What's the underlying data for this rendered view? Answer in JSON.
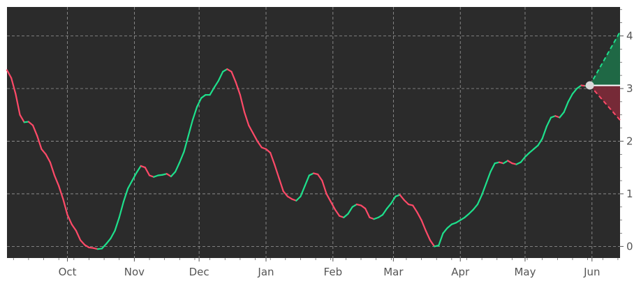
{
  "chart_data": {
    "type": "line",
    "title": "",
    "xlabel": "",
    "ylabel": "",
    "x_tick_labels": [
      "Oct",
      "Nov",
      "Dec",
      "Jan",
      "Feb",
      "Mar",
      "Apr",
      "May",
      "Jun"
    ],
    "y_tick_labels": [
      "0",
      "1",
      "2",
      "3",
      "4"
    ],
    "ylim": [
      -0.22,
      4.55
    ],
    "xlim": [
      "2020-09-03",
      "2021-06-14"
    ],
    "grid": true,
    "y_axis_side": "right",
    "colors": {
      "background": "#2b2b2b",
      "up": "#1ee08c",
      "down": "#ff4a68",
      "grid": "#9a9a9a",
      "marker": "#d9d9d9",
      "up_band": "#1f6b47",
      "down_band": "#7a2a38",
      "axis_text": "#555555"
    },
    "series": [
      {
        "points": [
          [
            "2020-09-03",
            3.35
          ],
          [
            "2020-09-05",
            3.2
          ],
          [
            "2020-09-07",
            2.9
          ],
          [
            "2020-09-09",
            2.5
          ],
          [
            "2020-09-11",
            2.36
          ],
          [
            "2020-09-13",
            2.37
          ],
          [
            "2020-09-15",
            2.3
          ],
          [
            "2020-09-17",
            2.1
          ],
          [
            "2020-09-19",
            1.85
          ],
          [
            "2020-09-21",
            1.75
          ],
          [
            "2020-09-23",
            1.6
          ],
          [
            "2020-09-25",
            1.35
          ],
          [
            "2020-09-27",
            1.15
          ],
          [
            "2020-09-29",
            0.9
          ],
          [
            "2020-10-01",
            0.6
          ],
          [
            "2020-10-03",
            0.42
          ],
          [
            "2020-10-05",
            0.3
          ],
          [
            "2020-10-07",
            0.12
          ],
          [
            "2020-10-09",
            0.03
          ],
          [
            "2020-10-11",
            -0.02
          ],
          [
            "2020-10-13",
            -0.03
          ],
          [
            "2020-10-15",
            -0.05
          ],
          [
            "2020-10-17",
            -0.04
          ],
          [
            "2020-10-19",
            0.05
          ],
          [
            "2020-10-21",
            0.15
          ],
          [
            "2020-10-23",
            0.3
          ],
          [
            "2020-10-25",
            0.55
          ],
          [
            "2020-10-27",
            0.85
          ],
          [
            "2020-10-29",
            1.1
          ],
          [
            "2020-10-31",
            1.25
          ],
          [
            "2020-11-02",
            1.4
          ],
          [
            "2020-11-04",
            1.53
          ],
          [
            "2020-11-06",
            1.5
          ],
          [
            "2020-11-08",
            1.35
          ],
          [
            "2020-11-10",
            1.32
          ],
          [
            "2020-11-12",
            1.35
          ],
          [
            "2020-11-14",
            1.36
          ],
          [
            "2020-11-16",
            1.38
          ],
          [
            "2020-11-18",
            1.33
          ],
          [
            "2020-11-20",
            1.42
          ],
          [
            "2020-11-22",
            1.6
          ],
          [
            "2020-11-24",
            1.8
          ],
          [
            "2020-11-26",
            2.1
          ],
          [
            "2020-11-28",
            2.4
          ],
          [
            "2020-11-30",
            2.65
          ],
          [
            "2020-12-02",
            2.82
          ],
          [
            "2020-12-04",
            2.88
          ],
          [
            "2020-12-06",
            2.88
          ],
          [
            "2020-12-08",
            3.02
          ],
          [
            "2020-12-10",
            3.15
          ],
          [
            "2020-12-12",
            3.32
          ],
          [
            "2020-12-14",
            3.37
          ],
          [
            "2020-12-16",
            3.32
          ],
          [
            "2020-12-18",
            3.12
          ],
          [
            "2020-12-20",
            2.88
          ],
          [
            "2020-12-22",
            2.55
          ],
          [
            "2020-12-24",
            2.3
          ],
          [
            "2020-12-26",
            2.15
          ],
          [
            "2020-12-28",
            2.0
          ],
          [
            "2020-12-30",
            1.88
          ],
          [
            "2021-01-01",
            1.85
          ],
          [
            "2021-01-03",
            1.78
          ],
          [
            "2021-01-05",
            1.55
          ],
          [
            "2021-01-07",
            1.3
          ],
          [
            "2021-01-09",
            1.05
          ],
          [
            "2021-01-11",
            0.95
          ],
          [
            "2021-01-13",
            0.9
          ],
          [
            "2021-01-15",
            0.87
          ],
          [
            "2021-01-17",
            0.95
          ],
          [
            "2021-01-19",
            1.15
          ],
          [
            "2021-01-21",
            1.35
          ],
          [
            "2021-01-23",
            1.39
          ],
          [
            "2021-01-25",
            1.37
          ],
          [
            "2021-01-27",
            1.25
          ],
          [
            "2021-01-29",
            1.0
          ],
          [
            "2021-01-31",
            0.85
          ],
          [
            "2021-02-02",
            0.7
          ],
          [
            "2021-02-04",
            0.58
          ],
          [
            "2021-02-06",
            0.55
          ],
          [
            "2021-02-08",
            0.62
          ],
          [
            "2021-02-10",
            0.75
          ],
          [
            "2021-02-12",
            0.8
          ],
          [
            "2021-02-14",
            0.78
          ],
          [
            "2021-02-16",
            0.72
          ],
          [
            "2021-02-18",
            0.55
          ],
          [
            "2021-02-20",
            0.52
          ],
          [
            "2021-02-22",
            0.55
          ],
          [
            "2021-02-24",
            0.6
          ],
          [
            "2021-02-26",
            0.72
          ],
          [
            "2021-02-28",
            0.82
          ],
          [
            "2021-03-02",
            0.95
          ],
          [
            "2021-03-04",
            0.98
          ],
          [
            "2021-03-06",
            0.88
          ],
          [
            "2021-03-08",
            0.8
          ],
          [
            "2021-03-10",
            0.78
          ],
          [
            "2021-03-12",
            0.65
          ],
          [
            "2021-03-14",
            0.5
          ],
          [
            "2021-03-16",
            0.3
          ],
          [
            "2021-03-18",
            0.12
          ],
          [
            "2021-03-20",
            0.0
          ],
          [
            "2021-03-22",
            0.02
          ],
          [
            "2021-03-24",
            0.25
          ],
          [
            "2021-03-26",
            0.35
          ],
          [
            "2021-03-28",
            0.42
          ],
          [
            "2021-03-30",
            0.45
          ],
          [
            "2021-04-01",
            0.5
          ],
          [
            "2021-04-03",
            0.55
          ],
          [
            "2021-04-05",
            0.62
          ],
          [
            "2021-04-07",
            0.7
          ],
          [
            "2021-04-09",
            0.8
          ],
          [
            "2021-04-11",
            0.98
          ],
          [
            "2021-04-13",
            1.2
          ],
          [
            "2021-04-15",
            1.42
          ],
          [
            "2021-04-17",
            1.58
          ],
          [
            "2021-04-19",
            1.6
          ],
          [
            "2021-04-21",
            1.58
          ],
          [
            "2021-04-23",
            1.63
          ],
          [
            "2021-04-25",
            1.58
          ],
          [
            "2021-04-27",
            1.56
          ],
          [
            "2021-04-29",
            1.6
          ],
          [
            "2021-05-01",
            1.7
          ],
          [
            "2021-05-03",
            1.78
          ],
          [
            "2021-05-05",
            1.85
          ],
          [
            "2021-05-07",
            1.92
          ],
          [
            "2021-05-09",
            2.05
          ],
          [
            "2021-05-11",
            2.28
          ],
          [
            "2021-05-13",
            2.45
          ],
          [
            "2021-05-15",
            2.48
          ],
          [
            "2021-05-17",
            2.45
          ],
          [
            "2021-05-19",
            2.55
          ],
          [
            "2021-05-21",
            2.75
          ],
          [
            "2021-05-23",
            2.9
          ],
          [
            "2021-05-25",
            3.0
          ],
          [
            "2021-05-27",
            3.06
          ],
          [
            "2021-05-29",
            3.05
          ],
          [
            "2021-05-31",
            3.06
          ]
        ]
      }
    ],
    "forecast": {
      "start": [
        "2021-05-31",
        3.06
      ],
      "end_date": "2021-06-14",
      "upper_end": 4.08,
      "base_end": 3.06,
      "lower_end": 2.4
    }
  }
}
